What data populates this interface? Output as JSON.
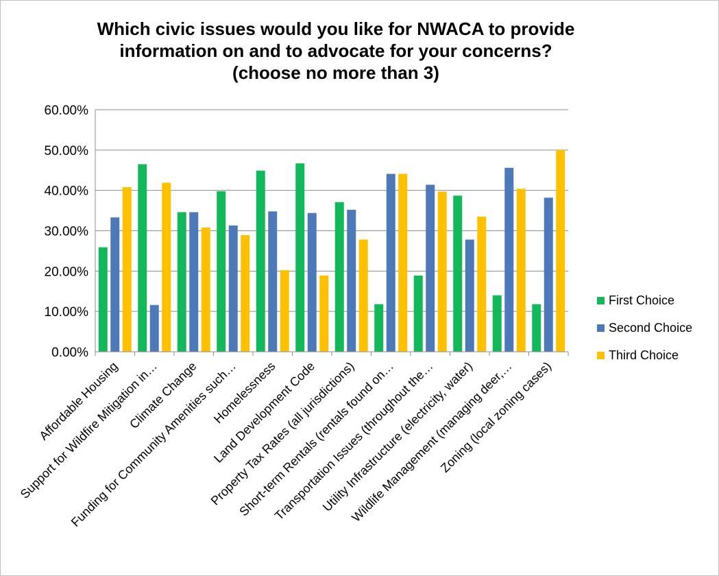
{
  "chart_data": {
    "type": "bar",
    "title_lines": [
      "Which civic issues would you like for NWACA to provide",
      "information on and to advocate for your concerns?",
      "(choose no more than 3)"
    ],
    "xlabel": "",
    "ylabel": "",
    "ylim": [
      0,
      60
    ],
    "yticks": [
      0,
      10,
      20,
      30,
      40,
      50,
      60
    ],
    "ytick_labels": [
      "0.00%",
      "10.00%",
      "20.00%",
      "30.00%",
      "40.00%",
      "50.00%",
      "60.00%"
    ],
    "grid": true,
    "legend_position": "right",
    "categories": [
      "Affordable Housing",
      "Support for Wildfire Mitigation in…",
      "Climate Change",
      "Funding for Community Amenities such…",
      "Homelessness",
      "Land Development Code",
      "Property Tax Rates (all jurisdictions)",
      "Short-term Rentals (rentals found on…",
      "Transportation Issues (throughout the…",
      "Utility Infrastructure (electricity, water)",
      "Wildlife Management (managing deer,…",
      "Zoning (local zoning cases)"
    ],
    "series": [
      {
        "name": "First Choice",
        "color": "#12b85a",
        "values": [
          25.9,
          46.5,
          34.6,
          39.8,
          44.9,
          46.7,
          37.1,
          11.8,
          18.9,
          38.7,
          14.0,
          11.8
        ]
      },
      {
        "name": "Second Choice",
        "color": "#4e79b8",
        "values": [
          33.3,
          11.6,
          34.6,
          31.3,
          34.8,
          34.4,
          35.2,
          44.1,
          41.4,
          27.8,
          45.6,
          38.2
        ]
      },
      {
        "name": "Third Choice",
        "color": "#ffc000",
        "values": [
          40.8,
          41.9,
          30.8,
          28.9,
          20.2,
          18.9,
          27.8,
          44.1,
          39.7,
          33.5,
          40.4,
          50.0
        ]
      }
    ]
  }
}
